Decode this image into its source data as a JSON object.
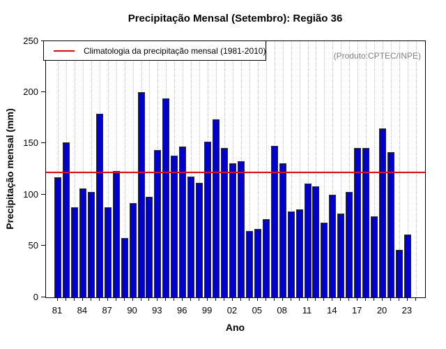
{
  "watermark": "(Produto:CPTEC/INPE)",
  "chart_data": {
    "type": "bar",
    "title": "Precipitação Mensal (Setembro): Região 36",
    "xlabel": "Ano",
    "ylabel": "Precipitação mensal (mm)",
    "legend": "Climatologia da precipitação mensal (1981-2010)",
    "legend_position": "top-left",
    "grid": "vertical-dotted",
    "ylim": [
      0,
      250
    ],
    "yticks": [
      0,
      50,
      100,
      150,
      200,
      250
    ],
    "x_tick_labels": [
      "81",
      "84",
      "87",
      "90",
      "93",
      "96",
      "99",
      "02",
      "05",
      "08",
      "11",
      "14",
      "17",
      "20",
      "23"
    ],
    "x_tick_step_years": 3,
    "years": [
      1981,
      1982,
      1983,
      1984,
      1985,
      1986,
      1987,
      1988,
      1989,
      1990,
      1991,
      1992,
      1993,
      1994,
      1995,
      1996,
      1997,
      1998,
      1999,
      2000,
      2001,
      2002,
      2003,
      2004,
      2005,
      2006,
      2007,
      2008,
      2009,
      2010,
      2011,
      2012,
      2013,
      2014,
      2015,
      2016,
      2017,
      2018,
      2019,
      2020,
      2021,
      2022,
      2023
    ],
    "values": [
      117,
      151,
      88,
      106,
      103,
      179,
      88,
      123,
      58,
      92,
      200,
      98,
      144,
      194,
      138,
      147,
      118,
      112,
      152,
      174,
      146,
      131,
      133,
      65,
      67,
      76,
      148,
      131,
      84,
      86,
      111,
      108,
      73,
      100,
      82,
      103,
      146,
      146,
      79,
      165,
      142,
      46,
      61
    ],
    "climatology_value": 122,
    "colors": {
      "bar": "#0000CD",
      "bar_border": "#2b2b2b",
      "climatology_line": "#FF0000",
      "grid": "#c9c9c9",
      "watermark_text": "#7f7f7f"
    }
  }
}
